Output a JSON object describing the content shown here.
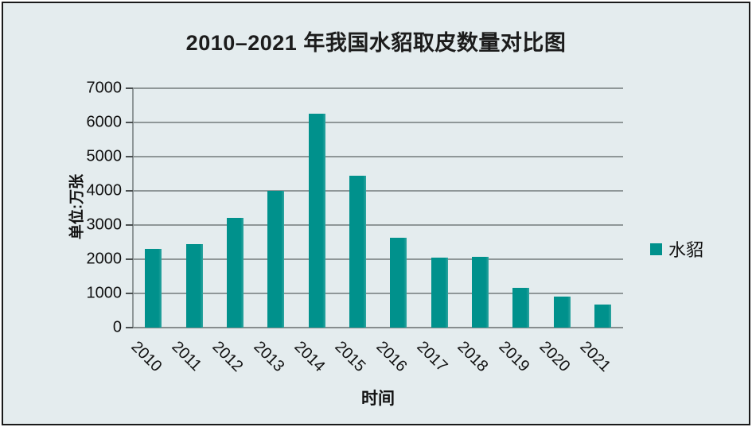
{
  "chart_data": {
    "type": "bar",
    "title": "2010–2021 年我国水貂取皮数量对比图",
    "xlabel": "时间",
    "ylabel": "单位:万张",
    "categories": [
      "2010",
      "2011",
      "2012",
      "2013",
      "2014",
      "2015",
      "2016",
      "2017",
      "2018",
      "2019",
      "2020",
      "2021"
    ],
    "series": [
      {
        "name": "水貂",
        "color": "#00918C",
        "values": [
          2300,
          2450,
          3200,
          4000,
          6250,
          4450,
          2620,
          2050,
          2080,
          1160,
          910,
          670
        ]
      }
    ],
    "ylim": [
      0,
      7000
    ],
    "yticks": [
      0,
      1000,
      2000,
      3000,
      4000,
      5000,
      6000,
      7000
    ],
    "grid": true,
    "legend_position": "right",
    "colors": {
      "bar": "#00918C",
      "canvas_background": "#E4ECEE",
      "gridline": "#8F9798",
      "frame_border": "#1A1A1A",
      "text": "#111111"
    }
  }
}
